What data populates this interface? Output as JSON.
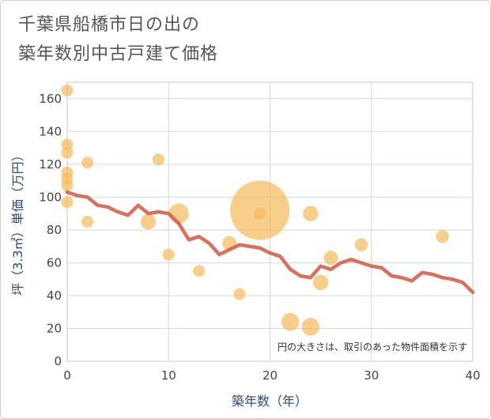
{
  "chart_data": {
    "type": "scatter",
    "title_lines": [
      "千葉県船橋市日の出の",
      "築年数別中古戸建て価格"
    ],
    "xlabel": "築年数（年）",
    "ylabel": "坪（3.3㎡）単価（万円）",
    "xlim": [
      0,
      40
    ],
    "ylim": [
      0,
      170
    ],
    "x_ticks": [
      0,
      10,
      20,
      30,
      40
    ],
    "y_ticks": [
      0,
      20,
      40,
      60,
      80,
      100,
      120,
      140,
      160
    ],
    "grid": true,
    "note": "円の大きさは、取引のあった物件面積を示す",
    "bubble_color": "#f5b95a",
    "line_color": "#d4604f",
    "points": [
      {
        "x": 0,
        "y": 165,
        "size": 1
      },
      {
        "x": 0,
        "y": 132,
        "size": 1
      },
      {
        "x": 0,
        "y": 127,
        "size": 1
      },
      {
        "x": 0,
        "y": 115,
        "size": 1
      },
      {
        "x": 0,
        "y": 111,
        "size": 1
      },
      {
        "x": 0,
        "y": 107,
        "size": 1
      },
      {
        "x": 0,
        "y": 97,
        "size": 1
      },
      {
        "x": 2,
        "y": 121,
        "size": 1
      },
      {
        "x": 2,
        "y": 85,
        "size": 1
      },
      {
        "x": 8,
        "y": 85,
        "size": 1.3
      },
      {
        "x": 9,
        "y": 123,
        "size": 1
      },
      {
        "x": 10,
        "y": 65,
        "size": 1
      },
      {
        "x": 11,
        "y": 90,
        "size": 1.7
      },
      {
        "x": 13,
        "y": 55,
        "size": 1
      },
      {
        "x": 16,
        "y": 72,
        "size": 1.2
      },
      {
        "x": 17,
        "y": 41,
        "size": 1
      },
      {
        "x": 19,
        "y": 92,
        "size": 5
      },
      {
        "x": 19,
        "y": 90,
        "size": 1
      },
      {
        "x": 22,
        "y": 24,
        "size": 1.5
      },
      {
        "x": 24,
        "y": 90,
        "size": 1.3
      },
      {
        "x": 24,
        "y": 21,
        "size": 1.5
      },
      {
        "x": 25,
        "y": 48,
        "size": 1.3
      },
      {
        "x": 26,
        "y": 63,
        "size": 1.2
      },
      {
        "x": 29,
        "y": 71,
        "size": 1.1
      },
      {
        "x": 37,
        "y": 76,
        "size": 1.1
      }
    ],
    "trend": {
      "x": [
        0,
        1,
        2,
        3,
        4,
        5,
        6,
        7,
        8,
        9,
        10,
        11,
        12,
        13,
        14,
        15,
        16,
        17,
        18,
        19,
        20,
        21,
        22,
        23,
        24,
        25,
        26,
        27,
        28,
        29,
        30,
        31,
        32,
        33,
        34,
        35,
        36,
        37,
        38,
        39,
        40
      ],
      "y": [
        103,
        101,
        100,
        95,
        94,
        91,
        89,
        95,
        90,
        91,
        90,
        84,
        74,
        76,
        72,
        65,
        68,
        71,
        70,
        69,
        66,
        64,
        56,
        52,
        51,
        58,
        56,
        60,
        62,
        60,
        58,
        57,
        52,
        51,
        49,
        54,
        53,
        51,
        50,
        48,
        42
      ]
    }
  }
}
